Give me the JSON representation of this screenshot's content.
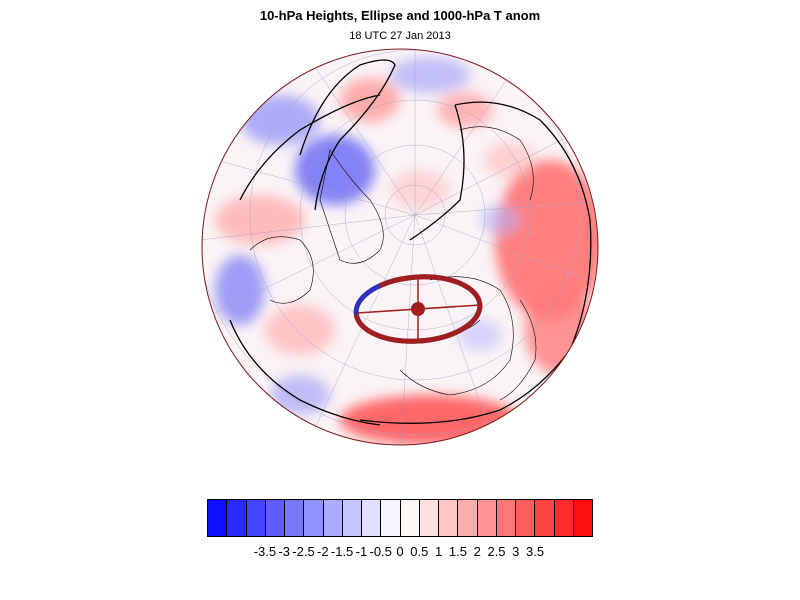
{
  "title": "10-hPa Heights, Ellipse and 1000-hPa T anom",
  "subtitle": "18 UTC 27 Jan 2013",
  "colorbar": {
    "labels": [
      "-3.5",
      "-3",
      "-2.5",
      "-2",
      "-1.5",
      "-1",
      "-0.5",
      "0",
      "0.5",
      "1",
      "1.5",
      "2",
      "2.5",
      "3",
      "3.5"
    ],
    "colors": [
      "#1010ff",
      "#2a2aff",
      "#4444ff",
      "#5e5eff",
      "#7878ff",
      "#9292ff",
      "#acacff",
      "#c6c6ff",
      "#e0e0ff",
      "#f6f6ff",
      "#fff6f6",
      "#ffe0e0",
      "#ffc6c6",
      "#ffacac",
      "#ff9292",
      "#ff7878",
      "#ff5e5e",
      "#ff4444",
      "#ff2a2a",
      "#ff1010"
    ]
  },
  "map": {
    "projection": "polar stereographic (north pole)",
    "ellipse_color": "#a01e1e",
    "contour_color": "#000000",
    "grid_color": "#9aa0c8"
  }
}
